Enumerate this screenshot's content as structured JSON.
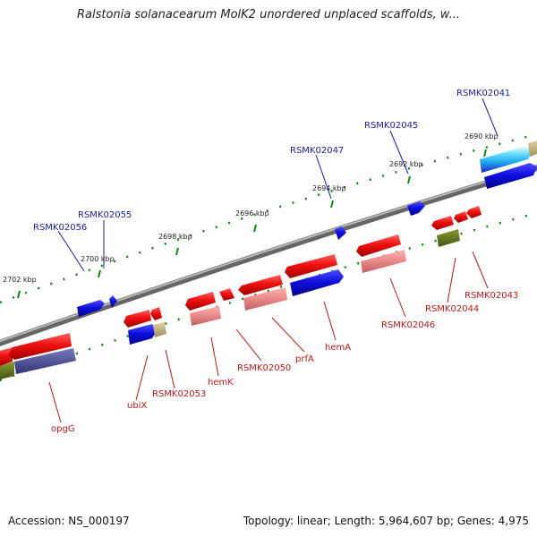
{
  "title": "Ralstonia solanacearum MolK2 unordered unplaced scaffolds, w...",
  "footer": {
    "accession": "Accession: NS_000197",
    "topology": "Topology: linear; Length: 5,964,607 bp; Genes: 4,975"
  },
  "ticks": [
    {
      "label": "2702 kbp"
    },
    {
      "label": "2700 kbp"
    },
    {
      "label": "2698 kbp"
    },
    {
      "label": "2696 kbp"
    },
    {
      "label": "2694 kbp"
    },
    {
      "label": "2692 kbp"
    },
    {
      "label": "2690 kbp"
    }
  ],
  "top_labels": [
    {
      "label": "RSMK02056"
    },
    {
      "label": "RSMK02055"
    },
    {
      "label": "RSMK02047"
    },
    {
      "label": "RSMK02045"
    },
    {
      "label": "RSMK02041"
    }
  ],
  "bottom_labels": [
    {
      "label": "opgG"
    },
    {
      "label": "ubiX"
    },
    {
      "label": "RSMK02053"
    },
    {
      "label": "hemK"
    },
    {
      "label": "RSMK02050"
    },
    {
      "label": "prfA"
    },
    {
      "label": "hemA"
    },
    {
      "label": "RSMK02046"
    },
    {
      "label": "RSMK02044"
    },
    {
      "label": "RSMK02043"
    }
  ],
  "colors": {
    "forward_gene": "#1010dd",
    "reverse_gene": "#e01010",
    "reverse_rna": "#e88888",
    "other_feature": "#667722",
    "pseudo": "#c0b080",
    "highlight": "#33ccee",
    "purple": "#555599",
    "backbone": "#888888",
    "tick": "#118811"
  }
}
